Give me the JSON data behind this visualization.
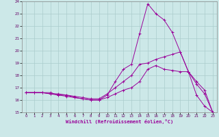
{
  "xlabel": "Windchill (Refroidissement éolien,°C)",
  "bg_color": "#cce8e8",
  "line_color": "#990099",
  "grid_color": "#aacccc",
  "xlim": [
    -0.5,
    23.5
  ],
  "ylim": [
    15,
    24
  ],
  "yticks": [
    15,
    16,
    17,
    18,
    19,
    20,
    21,
    22,
    23,
    24
  ],
  "xticks": [
    0,
    1,
    2,
    3,
    4,
    5,
    6,
    7,
    8,
    9,
    10,
    11,
    12,
    13,
    14,
    15,
    16,
    17,
    18,
    19,
    20,
    21,
    22,
    23
  ],
  "series": [
    {
      "x": [
        0,
        1,
        2,
        3,
        4,
        5,
        6,
        7,
        8,
        9,
        10,
        11,
        12,
        13,
        14,
        15,
        16,
        17,
        18,
        19,
        20,
        21,
        22,
        23
      ],
      "y": [
        16.6,
        16.6,
        16.6,
        16.6,
        16.4,
        16.4,
        16.2,
        16.1,
        16.0,
        16.0,
        16.4,
        17.5,
        18.5,
        18.9,
        21.4,
        23.8,
        23.0,
        22.5,
        21.5,
        19.9,
        18.3,
        16.4,
        15.5,
        15.0
      ]
    },
    {
      "x": [
        0,
        1,
        2,
        3,
        4,
        5,
        6,
        7,
        8,
        9,
        10,
        11,
        12,
        13,
        14,
        15,
        16,
        17,
        18,
        19,
        20,
        21,
        22,
        23
      ],
      "y": [
        16.6,
        16.6,
        16.6,
        16.5,
        16.5,
        16.4,
        16.3,
        16.2,
        16.1,
        16.1,
        16.5,
        17.0,
        17.5,
        18.0,
        18.9,
        19.0,
        19.3,
        19.5,
        19.7,
        19.9,
        18.3,
        17.5,
        16.8,
        15.0
      ]
    },
    {
      "x": [
        0,
        1,
        2,
        3,
        4,
        5,
        6,
        7,
        8,
        9,
        10,
        11,
        12,
        13,
        14,
        15,
        16,
        17,
        18,
        19,
        20,
        21,
        22,
        23
      ],
      "y": [
        16.6,
        16.6,
        16.6,
        16.5,
        16.4,
        16.3,
        16.2,
        16.1,
        16.0,
        16.0,
        16.2,
        16.5,
        16.8,
        17.0,
        17.5,
        18.5,
        18.8,
        18.5,
        18.4,
        18.3,
        18.3,
        17.3,
        16.5,
        15.0
      ]
    }
  ]
}
